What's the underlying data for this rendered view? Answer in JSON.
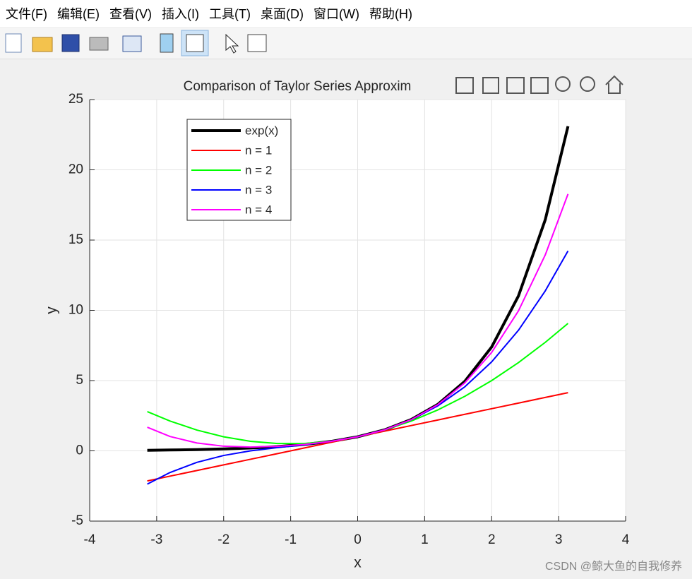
{
  "menu": [
    "文件(F)",
    "编辑(E)",
    "查看(V)",
    "插入(I)",
    "工具(T)",
    "桌面(D)",
    "窗口(W)",
    "帮助(H)"
  ],
  "watermark": "CSDN @鲸大鱼的自我修养",
  "chart_data": {
    "type": "line",
    "title": "Comparison of Taylor Series Approxim",
    "x_label": "x",
    "y_label": "y",
    "x": [
      -3.14,
      -2.8,
      -2.4,
      -2,
      -1.6,
      -1.2,
      -0.8,
      -0.4,
      0,
      0.4,
      0.8,
      1.2,
      1.6,
      2,
      2.4,
      2.8,
      3.14
    ],
    "series": [
      {
        "name": "exp(x)",
        "color": "#000000",
        "width": 4,
        "values": [
          0.04,
          0.06,
          0.09,
          0.14,
          0.2,
          0.3,
          0.45,
          0.67,
          1,
          1.49,
          2.23,
          3.32,
          4.95,
          7.39,
          11.02,
          16.44,
          23.1
        ]
      },
      {
        "name": "n = 1",
        "color": "#ff0000",
        "width": 2,
        "values": [
          -2.14,
          -1.8,
          -1.4,
          -1,
          -0.6,
          -0.2,
          0.2,
          0.6,
          1,
          1.4,
          1.8,
          2.2,
          2.6,
          3,
          3.4,
          3.8,
          4.14
        ]
      },
      {
        "name": "n = 2",
        "color": "#00ff00",
        "width": 2,
        "values": [
          2.79,
          2.12,
          1.48,
          1,
          0.68,
          0.52,
          0.52,
          0.68,
          1,
          1.48,
          2.12,
          2.92,
          3.88,
          5,
          6.28,
          7.72,
          9.07
        ]
      },
      {
        "name": "n = 3",
        "color": "#0000ff",
        "width": 2,
        "values": [
          -2.37,
          -1.54,
          -0.82,
          -0.33,
          0,
          0.23,
          0.43,
          0.67,
          1,
          1.49,
          2.21,
          3.21,
          4.56,
          6.33,
          8.58,
          11.38,
          14.23
        ]
      },
      {
        "name": "n = 4",
        "color": "#ff00ff",
        "width": 2,
        "values": [
          1.68,
          1.02,
          0.56,
          0.33,
          0.27,
          0.32,
          0.45,
          0.67,
          1,
          1.49,
          2.22,
          3.3,
          4.84,
          7,
          9.96,
          13.94,
          18.28
        ]
      }
    ],
    "xlim": [
      -4,
      4
    ],
    "xticks": [
      -4,
      -3,
      -2,
      -1,
      0,
      1,
      2,
      3,
      4
    ],
    "ylim": [
      -5,
      25
    ],
    "yticks": [
      -5,
      0,
      5,
      10,
      15,
      20,
      25
    ],
    "grid": true,
    "legend": "northwest"
  }
}
